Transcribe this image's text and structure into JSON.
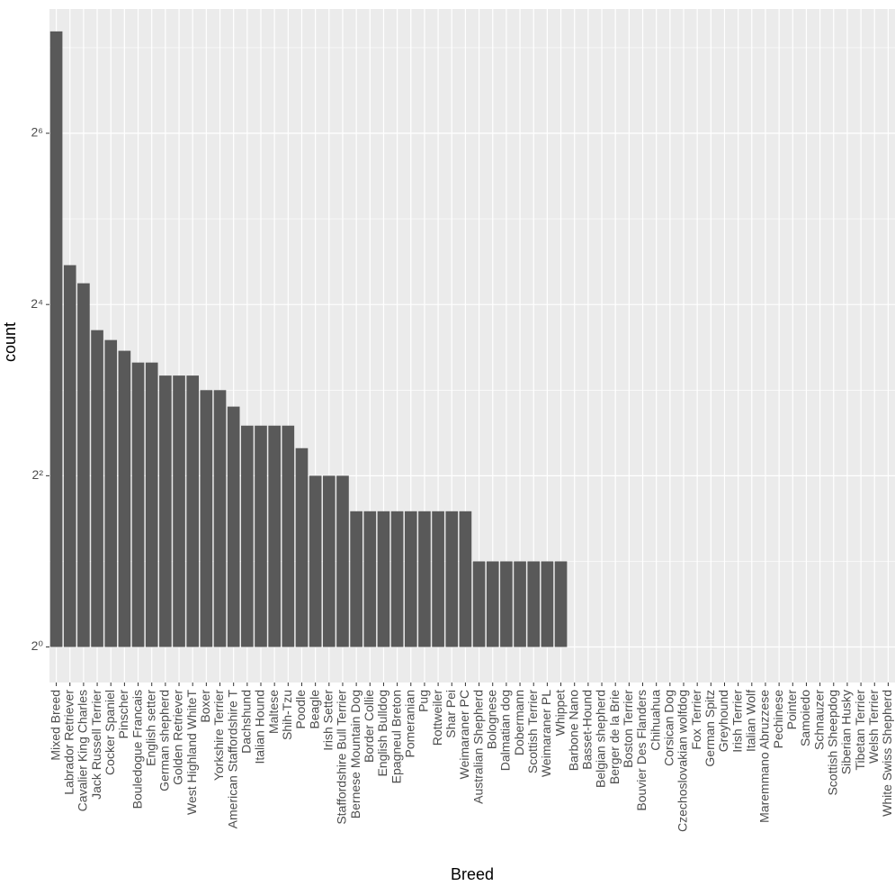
{
  "chart_data": {
    "type": "bar",
    "x_label": "Breed",
    "y_label": "count",
    "categories": [
      "Mixed Breed",
      "Labrador Retriever",
      "Cavalier King Charles",
      "Jack Russell Terrier",
      "Cocker Spaniel",
      "Pinscher",
      "Bouledogue Francais",
      "English setter",
      "German shepherd",
      "Golden Retriever",
      "West Highland WhiteT",
      "Boxer",
      "Yorkshire Terrier",
      "American Staffordshire T",
      "Dachshund",
      "Italian Hound",
      "Maltese",
      "Shih-Tzu",
      "Poodle",
      "Beagle",
      "Irish Setter",
      "Staffordshire Bull Terrier",
      "Bernese Mountain Dog",
      "Border Collie",
      "English Bulldog",
      "Epagneul Breton",
      "Pomeranian",
      "Pug",
      "Rottweiler",
      "Shar Pei",
      "Weimaraner PC",
      "Australian Shepherd",
      "Bolognese",
      "Dalmatian dog",
      "Dobermann",
      "Scottish Terrier",
      "Weimaraner PL",
      "Whippet",
      "Barbone Nano",
      "Basset-Hound",
      "Belgian shepherd",
      "Berger de la Brie",
      "Boston Terrier",
      "Bouvier Des Flanders",
      "Chihuahua",
      "Corsican Dog",
      "Czechoslovakian wolfdog",
      "Fox Terrier",
      "German Spitz",
      "Greyhound",
      "Irish Terrier",
      "Italian Wolf",
      "Maremmano Abruzzese",
      "Pechinese",
      "Pointer",
      "Samoiedo",
      "Schnauzer",
      "Scottish Sheepdog",
      "Siberian Husky",
      "Tibetan Terrier",
      "Welsh Terrier",
      "White Swiss Shepherd"
    ],
    "values": [
      146,
      22,
      19,
      13,
      12,
      11,
      10,
      10,
      9,
      9,
      9,
      8,
      8,
      7,
      6,
      6,
      6,
      6,
      5,
      4,
      4,
      4,
      3,
      3,
      3,
      3,
      3,
      3,
      3,
      3,
      3,
      2,
      2,
      2,
      2,
      2,
      2,
      2,
      1,
      1,
      1,
      1,
      1,
      1,
      1,
      1,
      1,
      1,
      1,
      1,
      1,
      1,
      1,
      1,
      1,
      1,
      1,
      1,
      1,
      1,
      1,
      1
    ],
    "color": "#595959",
    "log_scale_y": 2,
    "ylim": [
      0.75,
      175
    ],
    "yticks": [
      {
        "value": 1,
        "label": "2⁰"
      },
      {
        "value": 4,
        "label": "2²"
      },
      {
        "value": 16,
        "label": "2⁴"
      },
      {
        "value": 64,
        "label": "2⁶"
      }
    ],
    "grid": true
  }
}
